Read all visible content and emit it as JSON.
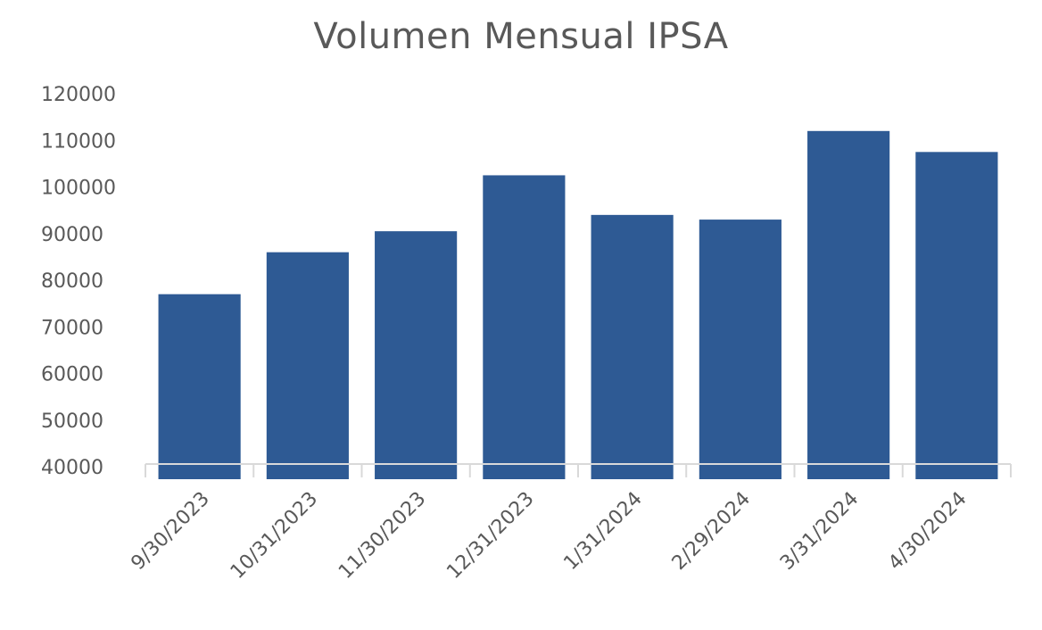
{
  "chart_data": {
    "type": "bar",
    "title": "Volumen Mensual IPSA",
    "xlabel": "",
    "ylabel": "",
    "categories": [
      "9/30/2023",
      "10/31/2023",
      "11/30/2023",
      "12/31/2023",
      "1/31/2024",
      "2/29/2024",
      "3/31/2024",
      "4/30/2024"
    ],
    "values": [
      77000,
      86000,
      90500,
      102500,
      94000,
      93000,
      112000,
      107500
    ],
    "ylim": [
      40000,
      120000
    ],
    "yticks": [
      "40000",
      "50000",
      "60000",
      "70000",
      "80000",
      "90000",
      "100000",
      "110000",
      "120000"
    ],
    "bar_color": "#2E5A94",
    "axis_color": "#D9D9D9",
    "text_color": "#595959",
    "grid": false,
    "legend": "none"
  }
}
